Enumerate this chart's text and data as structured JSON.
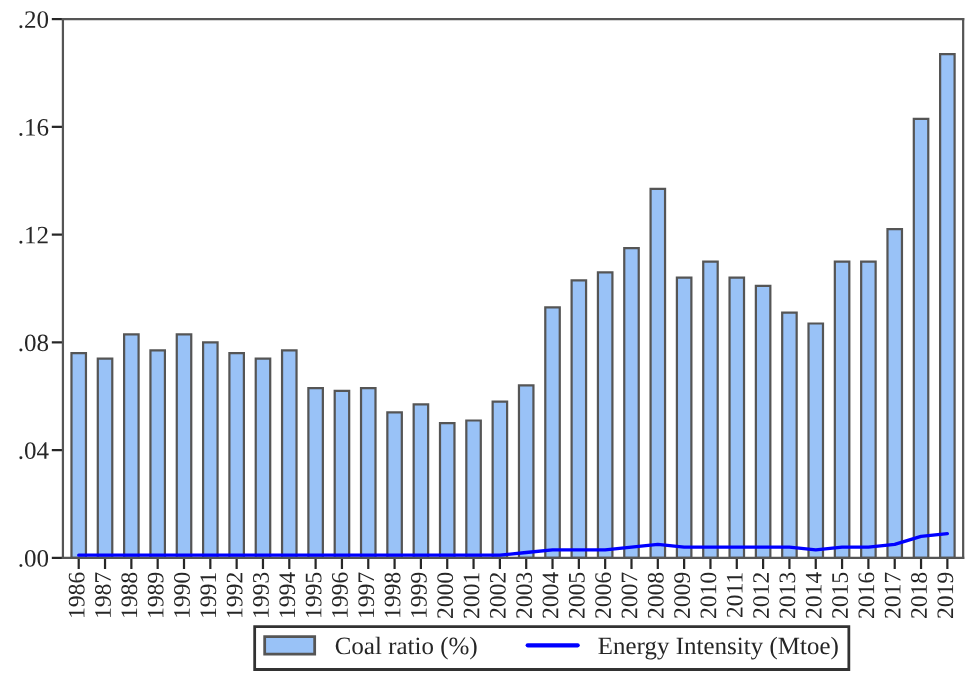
{
  "chart_data": {
    "type": "bar",
    "categories": [
      "1986",
      "1987",
      "1988",
      "1989",
      "1990",
      "1991",
      "1992",
      "1993",
      "1994",
      "1995",
      "1996",
      "1997",
      "1998",
      "1999",
      "2000",
      "2001",
      "2002",
      "2003",
      "2004",
      "2005",
      "2006",
      "2007",
      "2008",
      "2009",
      "2010",
      "2011",
      "2012",
      "2013",
      "2014",
      "2015",
      "2016",
      "2017",
      "2018",
      "2019"
    ],
    "series": [
      {
        "name": "Coal ratio (%)",
        "color": "#99c2f7",
        "values": [
          0.076,
          0.074,
          0.083,
          0.077,
          0.083,
          0.08,
          0.076,
          0.074,
          0.077,
          0.063,
          0.062,
          0.063,
          0.054,
          0.057,
          0.05,
          0.051,
          0.058,
          0.064,
          0.093,
          0.103,
          0.106,
          0.115,
          0.137,
          0.104,
          0.11,
          0.104,
          0.101,
          0.091,
          0.087,
          0.11,
          0.11,
          0.122,
          0.163,
          0.187
        ]
      },
      {
        "name": "Energy Intensity (Mtoe)",
        "type": "line",
        "color": "#0000ff",
        "values": [
          0.001,
          0.001,
          0.001,
          0.001,
          0.001,
          0.001,
          0.001,
          0.001,
          0.001,
          0.001,
          0.001,
          0.001,
          0.001,
          0.001,
          0.001,
          0.001,
          0.001,
          0.002,
          0.003,
          0.003,
          0.003,
          0.004,
          0.005,
          0.004,
          0.004,
          0.004,
          0.004,
          0.004,
          0.003,
          0.004,
          0.004,
          0.005,
          0.008,
          0.009
        ]
      }
    ],
    "ylim": [
      0,
      0.2
    ],
    "yticks": [
      {
        "value": 0,
        "label": ".00"
      },
      {
        "value": 0.04,
        "label": ".04"
      },
      {
        "value": 0.08,
        "label": ".08"
      },
      {
        "value": 0.12,
        "label": ".12"
      },
      {
        "value": 0.16,
        "label": ".16"
      },
      {
        "value": 0.2,
        "label": ".20"
      }
    ],
    "legend": "bottom",
    "grid": false,
    "marker": "none",
    "line_style": "solid"
  }
}
